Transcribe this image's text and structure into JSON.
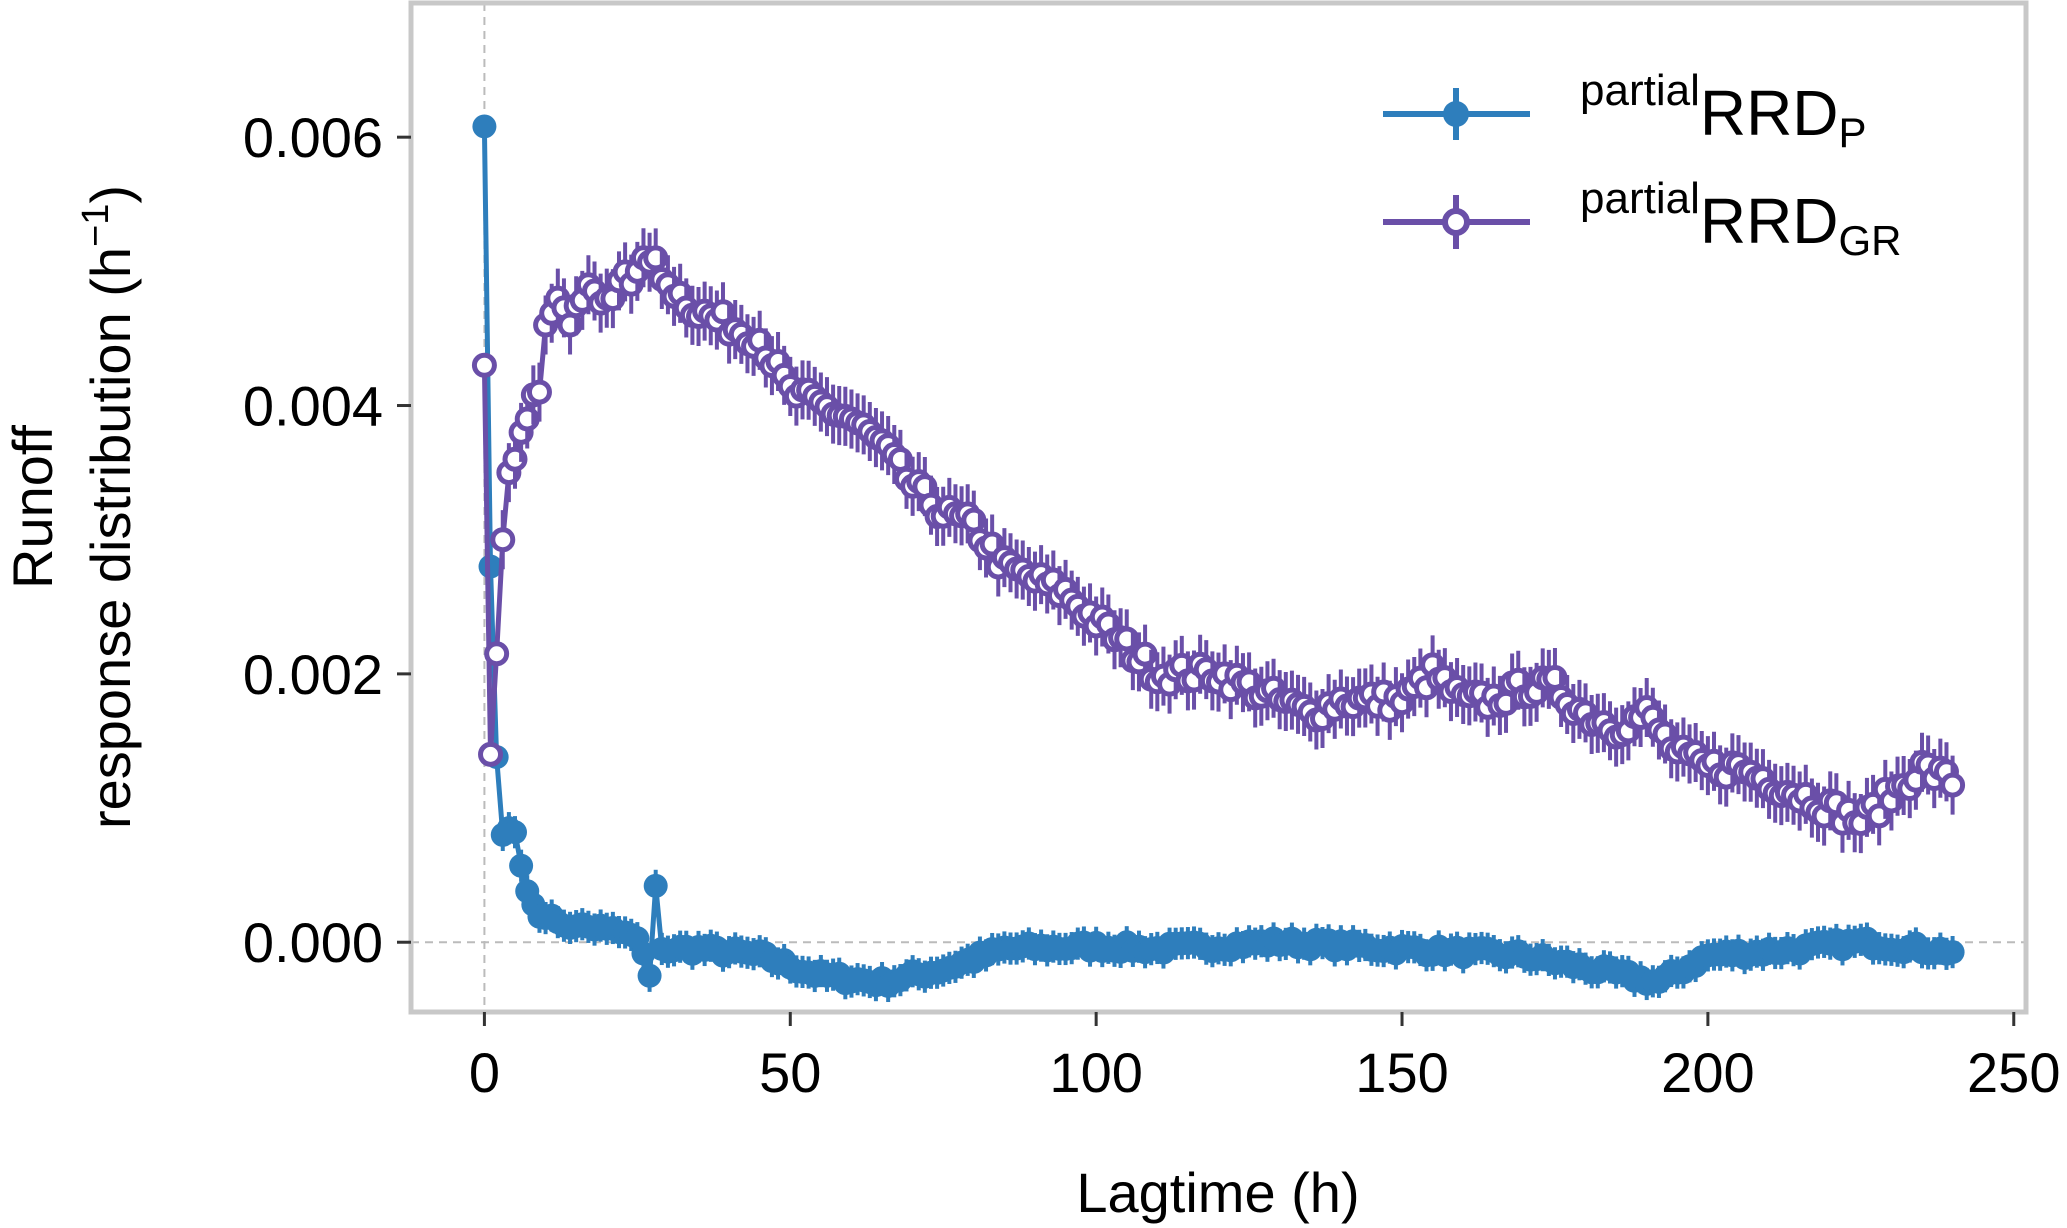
{
  "chart_data": {
    "type": "line",
    "xlabel": "Lagtime (h)",
    "ylabel_line1": "Runoff",
    "ylabel_line2": "response distribution (h",
    "ylabel_exponent": "−1",
    "ylabel_close": ")",
    "xlim": [
      -12,
      252
    ],
    "ylim": [
      -0.00052,
      0.007
    ],
    "xticks": [
      0,
      50,
      100,
      150,
      200,
      250
    ],
    "xtick_labels": [
      "0",
      "50",
      "100",
      "150",
      "200",
      "250"
    ],
    "yticks": [
      0.0,
      0.002,
      0.004,
      0.006
    ],
    "ytick_labels": [
      "0.000",
      "0.002",
      "0.004",
      "0.006"
    ],
    "reference_lines": {
      "x": 0,
      "y": 0
    },
    "grid": false,
    "legend_position": "top-right",
    "colors": {
      "rrd_p": "#2e7ebc",
      "rrd_gr": "#6a4fa8",
      "frame": "#c8c8c8",
      "refline": "#bbbbbb"
    },
    "series": [
      {
        "key": "rrd_p",
        "legend_sup": "partial",
        "legend_main": "RRD",
        "legend_sub": "P",
        "marker": "filled-circle",
        "anchors": [
          [
            0,
            0.00608
          ],
          [
            1,
            0.0028
          ],
          [
            2,
            0.00138
          ],
          [
            3,
            0.0008
          ],
          [
            4,
            0.00085
          ],
          [
            5,
            0.00082
          ],
          [
            6,
            0.00057
          ],
          [
            7,
            0.00038
          ],
          [
            8,
            0.00028
          ],
          [
            10,
            0.00018
          ],
          [
            12,
            0.00015
          ],
          [
            15,
            0.00012
          ],
          [
            20,
            0.0001
          ],
          [
            25,
            3e-05
          ],
          [
            27,
            -0.00025
          ],
          [
            28,
            0.00042
          ],
          [
            29,
            -5e-05
          ],
          [
            35,
            -5e-05
          ],
          [
            45,
            -0.0001
          ],
          [
            55,
            -0.00025
          ],
          [
            65,
            -0.0003
          ],
          [
            75,
            -0.0002
          ],
          [
            85,
            -5e-05
          ],
          [
            100,
            -3e-05
          ],
          [
            110,
            -5e-05
          ],
          [
            130,
            0.0
          ],
          [
            150,
            -5e-05
          ],
          [
            170,
            -0.0001
          ],
          [
            192,
            -0.0003
          ],
          [
            200,
            -0.0001
          ],
          [
            215,
            -5e-05
          ],
          [
            225,
            0.0
          ],
          [
            235,
            -5e-05
          ],
          [
            240,
            -7e-05
          ]
        ],
        "noise": 4e-05
      },
      {
        "key": "rrd_gr",
        "legend_sup": "partial",
        "legend_main": "RRD",
        "legend_sub": "GR",
        "marker": "open-circle",
        "anchors": [
          [
            0,
            0.0043
          ],
          [
            1,
            0.0014
          ],
          [
            2,
            0.00215
          ],
          [
            3,
            0.003
          ],
          [
            4,
            0.0035
          ],
          [
            5,
            0.0036
          ],
          [
            6,
            0.0038
          ],
          [
            7,
            0.0039
          ],
          [
            9,
            0.0041
          ],
          [
            10,
            0.0046
          ],
          [
            12,
            0.0048
          ],
          [
            14,
            0.0046
          ],
          [
            17,
            0.0049
          ],
          [
            20,
            0.0048
          ],
          [
            25,
            0.005
          ],
          [
            28,
            0.0051
          ],
          [
            30,
            0.0049
          ],
          [
            35,
            0.0047
          ],
          [
            40,
            0.0046
          ],
          [
            45,
            0.0045
          ],
          [
            50,
            0.0041
          ],
          [
            55,
            0.004
          ],
          [
            60,
            0.0039
          ],
          [
            65,
            0.0037
          ],
          [
            70,
            0.0034
          ],
          [
            75,
            0.0032
          ],
          [
            80,
            0.0031
          ],
          [
            85,
            0.0028
          ],
          [
            90,
            0.0027
          ],
          [
            95,
            0.0026
          ],
          [
            100,
            0.0024
          ],
          [
            105,
            0.0022
          ],
          [
            110,
            0.002
          ],
          [
            115,
            0.002
          ],
          [
            120,
            0.002
          ],
          [
            125,
            0.0019
          ],
          [
            130,
            0.0018
          ],
          [
            135,
            0.0017
          ],
          [
            140,
            0.0018
          ],
          [
            145,
            0.0018
          ],
          [
            150,
            0.0018
          ],
          [
            155,
            0.002
          ],
          [
            160,
            0.0018
          ],
          [
            165,
            0.0018
          ],
          [
            170,
            0.0019
          ],
          [
            175,
            0.0019
          ],
          [
            180,
            0.0017
          ],
          [
            185,
            0.0016
          ],
          [
            190,
            0.0017
          ],
          [
            195,
            0.0014
          ],
          [
            200,
            0.0013
          ],
          [
            205,
            0.0013
          ],
          [
            210,
            0.0012
          ],
          [
            215,
            0.0011
          ],
          [
            220,
            0.001
          ],
          [
            225,
            0.0009
          ],
          [
            230,
            0.0011
          ],
          [
            235,
            0.0013
          ],
          [
            240,
            0.0012
          ]
        ],
        "noise": 8e-05
      }
    ]
  }
}
